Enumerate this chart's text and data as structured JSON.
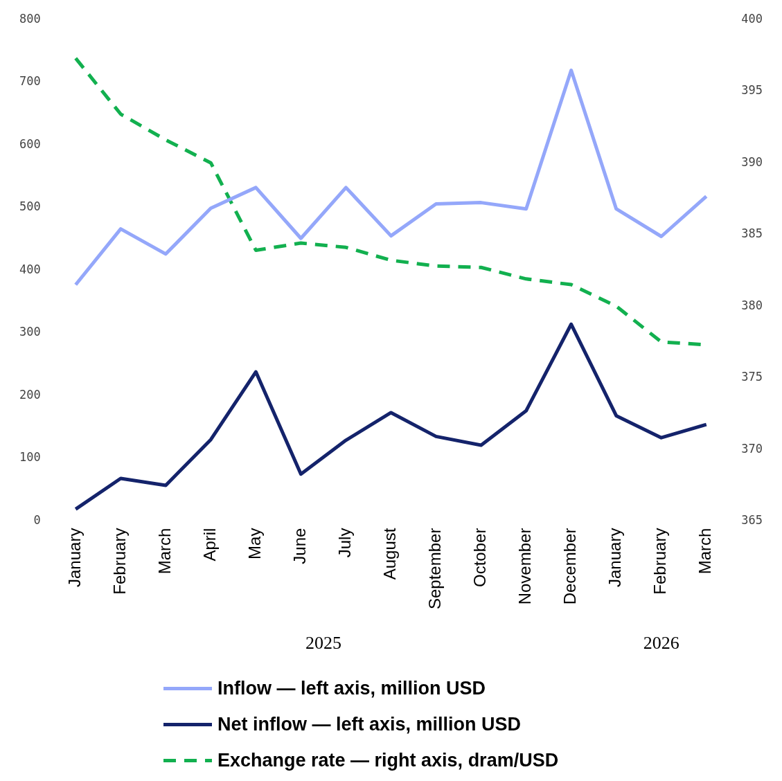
{
  "chart_data": {
    "type": "line",
    "categories": [
      "January",
      "February",
      "March",
      "April",
      "May",
      "June",
      "July",
      "August",
      "September",
      "October",
      "November",
      "December",
      "January",
      "February",
      "March"
    ],
    "series": [
      {
        "name": "Inflow — left axis, million USD",
        "color": "#94a7fa",
        "values": [
          377,
          466,
          426,
          499,
          532,
          451,
          532,
          455,
          506,
          508,
          498,
          719,
          498,
          454,
          518
        ]
      },
      {
        "name": "Net inflow — left axis, million USD",
        "color": "#14236b",
        "values": [
          19,
          68,
          57,
          130,
          238,
          75,
          129,
          173,
          135,
          121,
          176,
          314,
          168,
          133,
          154
        ]
      },
      {
        "name": "Exchange rate — right axis, dram/USD",
        "color": "#12b04f",
        "axis": "y2",
        "line_style": "dashed",
        "values": [
          397.3,
          393.4,
          391.6,
          390.0,
          383.9,
          384.4,
          384.1,
          383.2,
          382.8,
          382.7,
          381.9,
          381.5,
          380.0,
          377.5,
          377.3
        ]
      }
    ],
    "ylim": [
      0,
      800
    ],
    "yticks": [
      0,
      100,
      200,
      300,
      400,
      500,
      600,
      700,
      800
    ],
    "y2lim": [
      365,
      400
    ],
    "y2ticks": [
      365,
      370,
      375,
      380,
      385,
      390,
      395,
      400
    ],
    "annotations": [
      "2025",
      "2026"
    ],
    "grid": false,
    "legend": "bottom",
    "marker": "none",
    "line_style": "solid"
  }
}
